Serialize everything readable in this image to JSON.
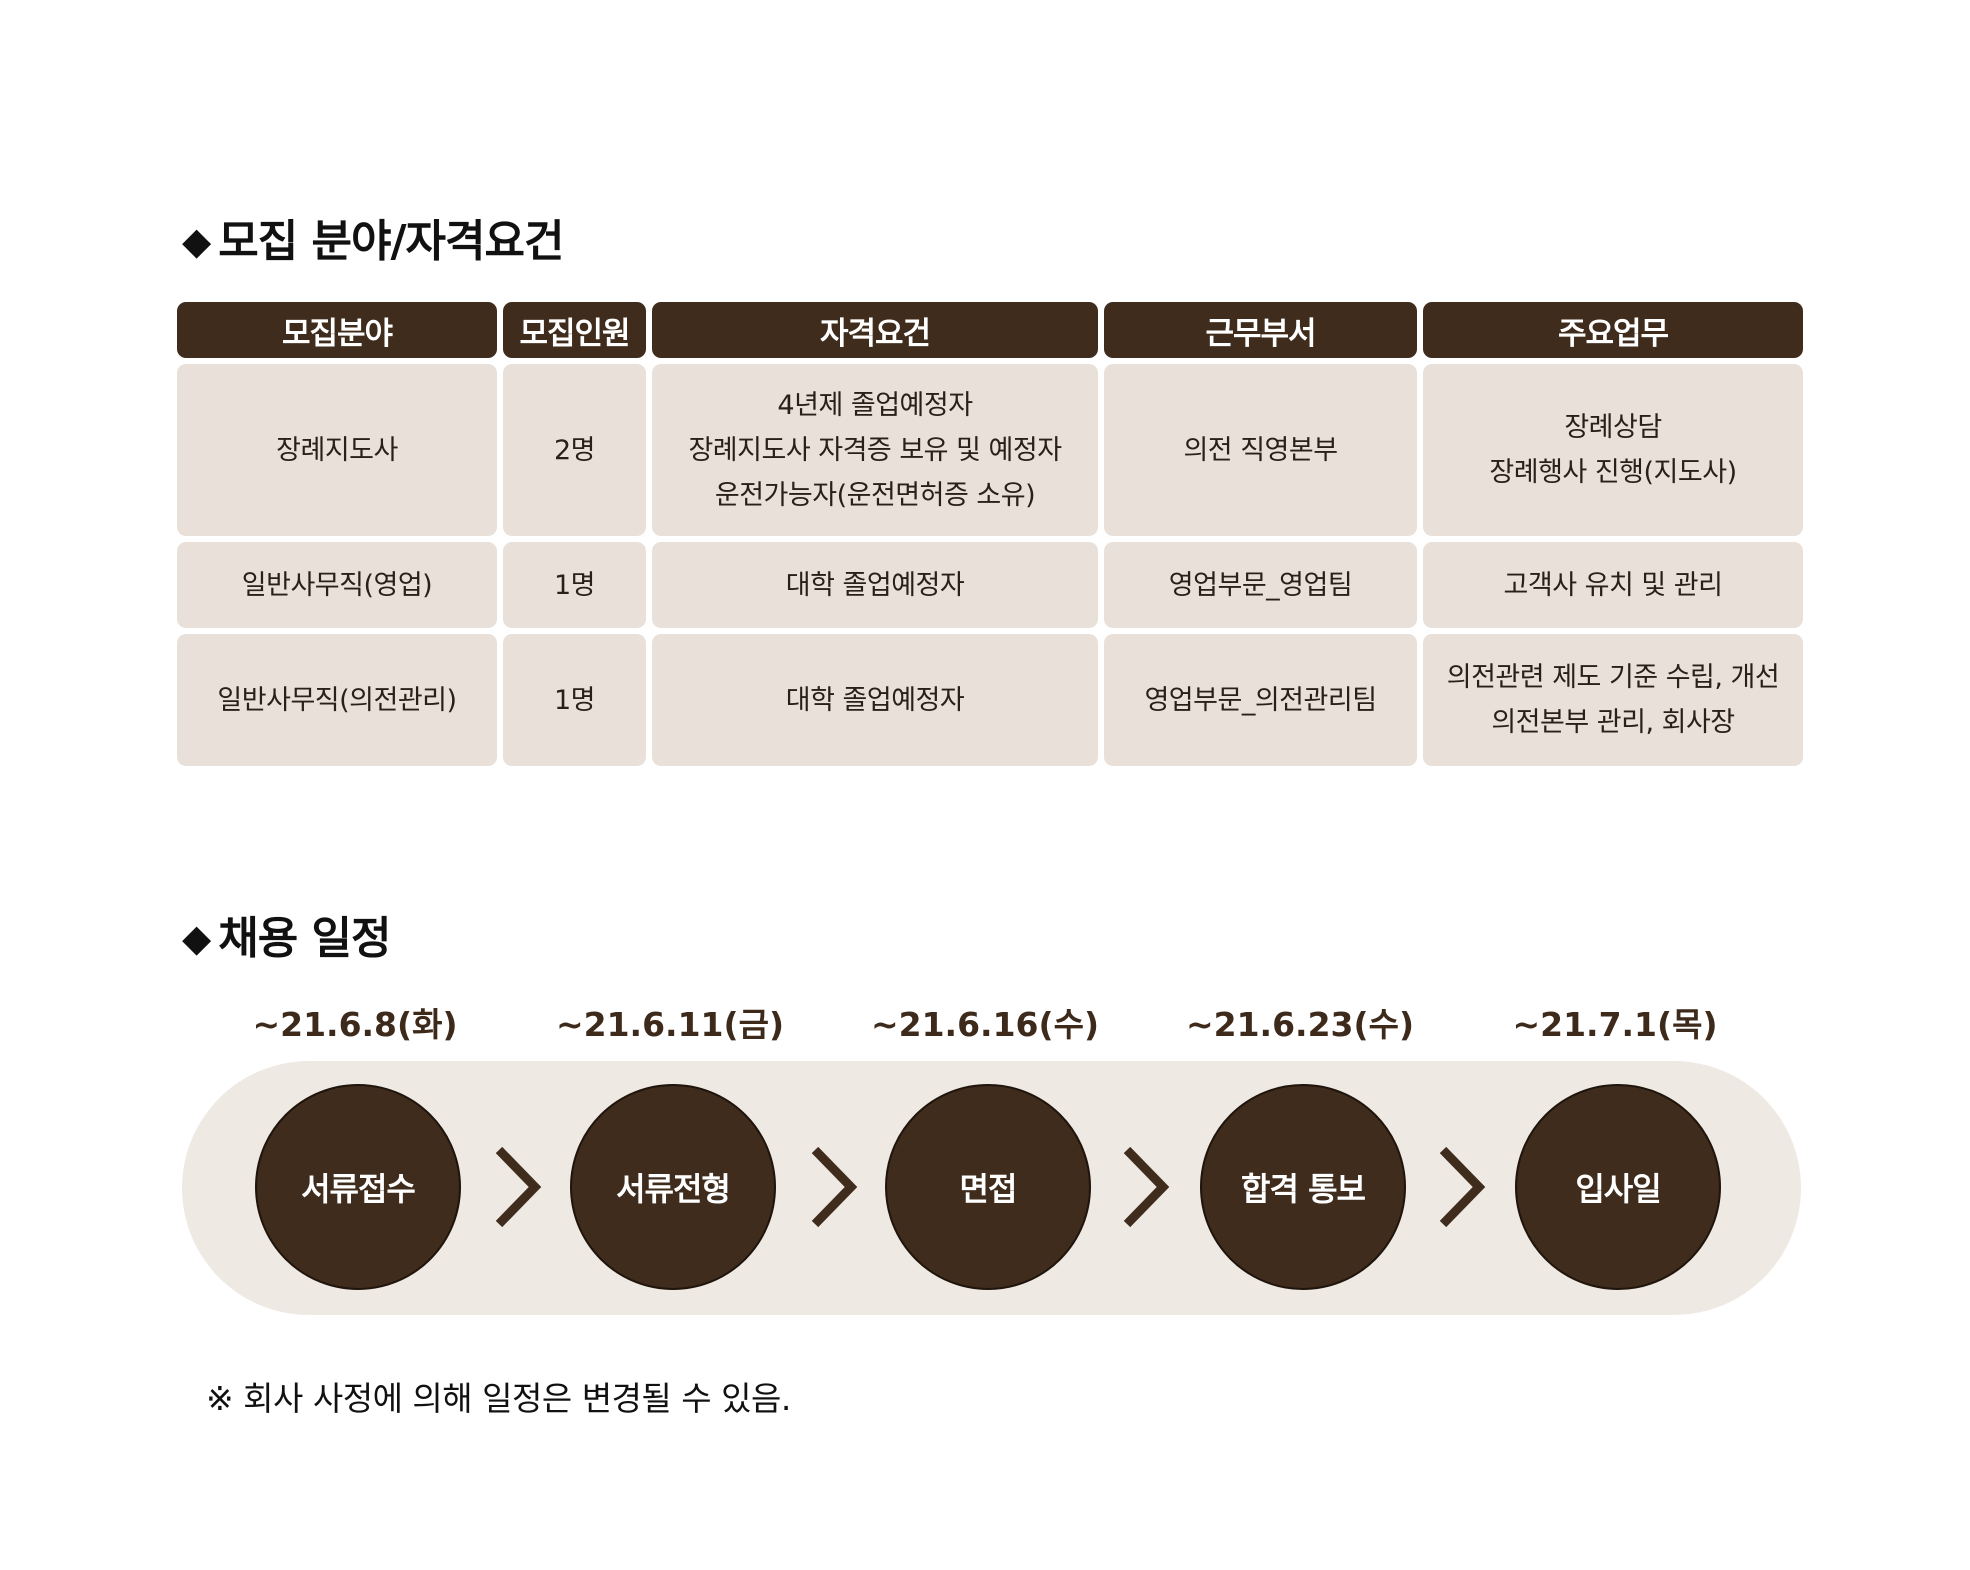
{
  "recruit": {
    "title": "모집 분야/자격요건",
    "headers": [
      "모집분야",
      "모집인원",
      "자격요건",
      "근무부서",
      "주요업무"
    ],
    "rows": [
      {
        "field": "장례지도사",
        "count": "2명",
        "requirements": [
          "4년제 졸업예정자",
          "장례지도사 자격증 보유 및 예정자",
          "운전가능자(운전면허증 소유)"
        ],
        "department": "의전 직영본부",
        "duties": [
          "장례상담",
          "장례행사 진행(지도사)"
        ]
      },
      {
        "field": "일반사무직(영업)",
        "count": "1명",
        "requirements": [
          "대학 졸업예정자"
        ],
        "department": "영업부문_영업팀",
        "duties": [
          "고객사 유치 및 관리"
        ]
      },
      {
        "field": "일반사무직(의전관리)",
        "count": "1명",
        "requirements": [
          "대학 졸업예정자"
        ],
        "department": "영업부문_의전관리팀",
        "duties": [
          "의전관련 제도 기준 수립, 개선",
          "의전본부 관리, 회사장"
        ]
      }
    ]
  },
  "schedule": {
    "title": "채용 일정",
    "steps": [
      {
        "date": "~21.6.8(화)",
        "label": "서류접수"
      },
      {
        "date": "~21.6.11(금)",
        "label": "서류전형"
      },
      {
        "date": "~21.6.16(수)",
        "label": "면접"
      },
      {
        "date": "~21.6.23(수)",
        "label": "합격 통보"
      },
      {
        "date": "~21.7.1(목)",
        "label": "입사일"
      }
    ],
    "notice": "※ 회사 사정에 의해 일정은 변경될 수 있음."
  }
}
